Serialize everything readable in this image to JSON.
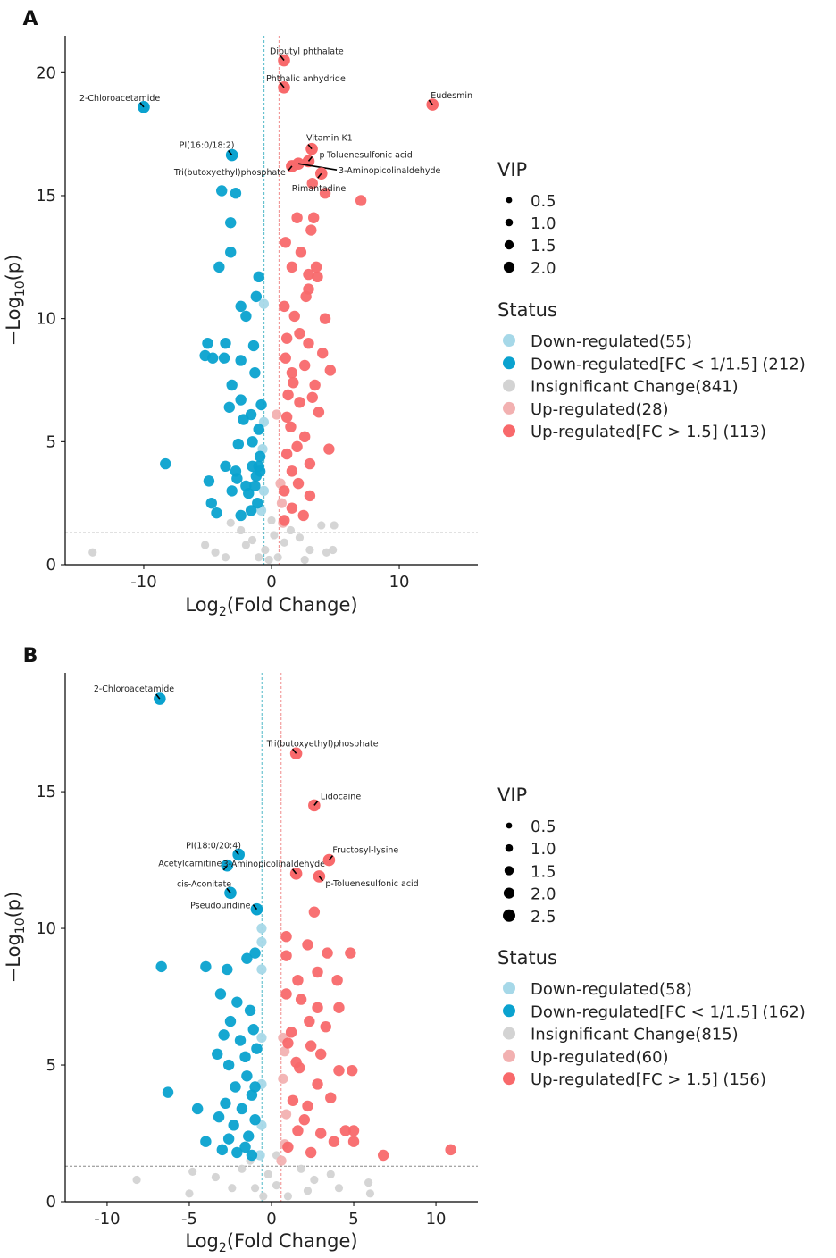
{
  "colors": {
    "down": "#a6d8e8",
    "down_fc": "#0aa2cf",
    "insig": "#d3d3d3",
    "up": "#f2b1b1",
    "up_fc": "#f8696b",
    "threshold_down": "#4fb8c8",
    "threshold_up": "#f08a8a",
    "threshold_p": "#888888"
  },
  "chart_data": [
    {
      "type": "scatter",
      "panel_label": "A",
      "xlabel": {
        "pre": "Log",
        "sub": "2",
        "post": "(Fold Change)"
      },
      "ylabel": {
        "pre": "−Log",
        "sub": "10",
        "post": "(p)"
      },
      "xlim": [
        -16.15,
        16.15
      ],
      "ylim": [
        0,
        21.5
      ],
      "xticks": [
        -10,
        0,
        10
      ],
      "yticks": [
        0,
        5,
        10,
        15,
        20
      ],
      "thresholds": {
        "log2fc": [
          -0.585,
          0.585
        ],
        "neg_log10_p": 1.3
      },
      "legend": {
        "vip_title": "VIP",
        "vip_sizes": [
          "0.5",
          "1.0",
          "1.5",
          "2.0"
        ],
        "status_title": "Status",
        "status": [
          {
            "key": "down",
            "label": "Down-regulated(55)"
          },
          {
            "key": "down_fc",
            "label": "Down-regulated[FC < 1/1.5] (212)"
          },
          {
            "key": "insig",
            "label": "Insignificant Change(841)"
          },
          {
            "key": "up",
            "label": "Up-regulated(28)"
          },
          {
            "key": "up_fc",
            "label": "Up-regulated[FC > 1.5] (113)"
          }
        ]
      },
      "labeled_points": [
        {
          "name": "Dibutyl phthalate",
          "x": 0.98,
          "y": 20.5,
          "status": "up_fc"
        },
        {
          "name": "Phthalic anhydride",
          "x": 0.98,
          "y": 19.4,
          "status": "up_fc"
        },
        {
          "name": "Eudesmin",
          "x": 12.6,
          "y": 18.7,
          "status": "up_fc"
        },
        {
          "name": "2-Chloroacetamide",
          "x": -10.0,
          "y": 18.6,
          "status": "down_fc"
        },
        {
          "name": "PI(16:0/18:2)",
          "x": -3.1,
          "y": 16.65,
          "status": "down_fc"
        },
        {
          "name": "Vitamin K1",
          "x": 3.15,
          "y": 16.9,
          "status": "up_fc"
        },
        {
          "name": "p-Toluenesulfonic acid",
          "x": 2.9,
          "y": 16.4,
          "status": "up_fc"
        },
        {
          "name": "Tri(butoxyethyl)phosphate",
          "x": 1.6,
          "y": 16.2,
          "status": "up_fc"
        },
        {
          "name": "3-Aminopicolinaldehyde",
          "x": 2.1,
          "y": 16.3,
          "status": "up_fc"
        },
        {
          "name": "Rimantadine",
          "x": 3.9,
          "y": 15.9,
          "status": "up_fc"
        }
      ],
      "points": {
        "down_fc": [
          [
            -3.9,
            15.2
          ],
          [
            -2.8,
            15.1
          ],
          [
            -3.2,
            13.9
          ],
          [
            -3.2,
            12.7
          ],
          [
            -4.1,
            12.1
          ],
          [
            -1.0,
            11.7
          ],
          [
            -1.2,
            10.9
          ],
          [
            -2.4,
            10.5
          ],
          [
            -2.0,
            10.1
          ],
          [
            -5.0,
            9.0
          ],
          [
            -5.2,
            8.5
          ],
          [
            -4.6,
            8.4
          ],
          [
            -3.7,
            8.4
          ],
          [
            -2.4,
            8.3
          ],
          [
            -1.4,
            8.9
          ],
          [
            -3.1,
            7.3
          ],
          [
            -2.4,
            6.7
          ],
          [
            -3.3,
            6.4
          ],
          [
            -1.6,
            6.1
          ],
          [
            -2.2,
            5.9
          ],
          [
            -1.5,
            5.0
          ],
          [
            -2.6,
            4.9
          ],
          [
            -8.3,
            4.1
          ],
          [
            -3.6,
            4.0
          ],
          [
            -2.8,
            3.8
          ],
          [
            -4.9,
            3.4
          ],
          [
            -3.1,
            3.0
          ],
          [
            -1.8,
            2.9
          ],
          [
            -4.7,
            2.5
          ],
          [
            -4.3,
            2.1
          ],
          [
            -2.4,
            2.0
          ],
          [
            -1.2,
            3.6
          ],
          [
            -0.9,
            4.4
          ],
          [
            -1.3,
            7.8
          ],
          [
            -0.8,
            6.5
          ],
          [
            -1.0,
            5.5
          ],
          [
            -1.5,
            4.0
          ],
          [
            -2.0,
            3.2
          ],
          [
            -1.1,
            2.5
          ],
          [
            -3.6,
            9.0
          ],
          [
            -1.0,
            4.0
          ],
          [
            -1.3,
            3.2
          ],
          [
            -0.9,
            3.8
          ],
          [
            -1.6,
            2.2
          ],
          [
            -2.7,
            3.5
          ]
        ],
        "down": [
          [
            -0.6,
            10.6
          ],
          [
            -0.6,
            5.8
          ],
          [
            -0.7,
            4.7
          ],
          [
            -0.6,
            3.0
          ],
          [
            -0.8,
            2.2
          ]
        ],
        "up_fc": [
          [
            2.0,
            14.1
          ],
          [
            3.3,
            14.1
          ],
          [
            1.1,
            13.1
          ],
          [
            3.1,
            13.6
          ],
          [
            2.3,
            12.7
          ],
          [
            1.6,
            12.1
          ],
          [
            3.5,
            12.1
          ],
          [
            2.9,
            11.8
          ],
          [
            3.6,
            11.7
          ],
          [
            2.9,
            11.2
          ],
          [
            2.7,
            10.9
          ],
          [
            1.8,
            10.1
          ],
          [
            4.2,
            10.0
          ],
          [
            1.2,
            9.2
          ],
          [
            2.2,
            9.4
          ],
          [
            2.9,
            9.0
          ],
          [
            4.0,
            8.6
          ],
          [
            1.1,
            8.4
          ],
          [
            2.6,
            8.1
          ],
          [
            4.6,
            7.9
          ],
          [
            1.7,
            7.4
          ],
          [
            3.4,
            7.3
          ],
          [
            1.3,
            6.9
          ],
          [
            2.2,
            6.6
          ],
          [
            3.7,
            6.2
          ],
          [
            1.5,
            5.6
          ],
          [
            2.6,
            5.2
          ],
          [
            4.5,
            4.7
          ],
          [
            1.2,
            4.5
          ],
          [
            3.0,
            4.1
          ],
          [
            1.6,
            3.8
          ],
          [
            2.1,
            3.3
          ],
          [
            1.0,
            3.0
          ],
          [
            3.0,
            2.8
          ],
          [
            1.6,
            2.3
          ],
          [
            2.5,
            2.0
          ],
          [
            1.0,
            1.8
          ],
          [
            7.0,
            14.8
          ],
          [
            4.2,
            15.1
          ],
          [
            3.2,
            15.5
          ],
          [
            1.6,
            7.8
          ],
          [
            2.0,
            4.8
          ],
          [
            1.2,
            6.0
          ],
          [
            3.2,
            6.8
          ],
          [
            1.0,
            10.5
          ]
        ],
        "up": [
          [
            0.4,
            6.1
          ],
          [
            0.7,
            3.3
          ],
          [
            0.8,
            2.5
          ],
          [
            0.9,
            1.7
          ]
        ],
        "insig": [
          [
            -14,
            0.5
          ],
          [
            -5.2,
            0.8
          ],
          [
            -4.4,
            0.5
          ],
          [
            -3.2,
            1.7
          ],
          [
            -2.4,
            1.4
          ],
          [
            -1.5,
            1.0
          ],
          [
            -0.5,
            0.6
          ],
          [
            0.2,
            1.2
          ],
          [
            0.5,
            0.3
          ],
          [
            1.0,
            0.9
          ],
          [
            1.5,
            1.4
          ],
          [
            2.2,
            1.1
          ],
          [
            3.0,
            0.6
          ],
          [
            3.9,
            1.6
          ],
          [
            4.9,
            1.6
          ],
          [
            4.8,
            0.6
          ],
          [
            -1.0,
            0.3
          ],
          [
            -2.0,
            0.8
          ],
          [
            0.0,
            1.8
          ],
          [
            -0.2,
            0.2
          ],
          [
            2.6,
            0.2
          ],
          [
            4.3,
            0.5
          ],
          [
            -3.6,
            0.3
          ]
        ]
      }
    },
    {
      "type": "scatter",
      "panel_label": "B",
      "xlabel": {
        "pre": "Log",
        "sub": "2",
        "post": "(Fold Change)"
      },
      "ylabel": {
        "pre": "−Log",
        "sub": "10",
        "post": "(p)"
      },
      "xlim": [
        -12.55,
        12.55
      ],
      "ylim": [
        0,
        19.35
      ],
      "xticks": [
        -10,
        -5,
        0,
        5,
        10
      ],
      "yticks": [
        0,
        5,
        10,
        15
      ],
      "thresholds": {
        "log2fc": [
          -0.585,
          0.585
        ],
        "neg_log10_p": 1.3
      },
      "legend": {
        "vip_title": "VIP",
        "vip_sizes": [
          "0.5",
          "1.0",
          "1.5",
          "2.0",
          "2.5"
        ],
        "status_title": "Status",
        "status": [
          {
            "key": "down",
            "label": "Down-regulated(58)"
          },
          {
            "key": "down_fc",
            "label": "Down-regulated[FC < 1/1.5] (162)"
          },
          {
            "key": "insig",
            "label": "Insignificant Change(815)"
          },
          {
            "key": "up",
            "label": "Up-regulated(60)"
          },
          {
            "key": "up_fc",
            "label": "Up-regulated[FC > 1.5] (156)"
          }
        ]
      },
      "labeled_points": [
        {
          "name": "2-Chloroacetamide",
          "x": -6.8,
          "y": 18.4,
          "status": "down_fc"
        },
        {
          "name": "Tri(butoxyethyl)phosphate",
          "x": 1.5,
          "y": 16.4,
          "status": "up_fc"
        },
        {
          "name": "Lidocaine",
          "x": 2.6,
          "y": 14.5,
          "status": "up_fc"
        },
        {
          "name": "PI(18:0/20:4)",
          "x": -2.0,
          "y": 12.7,
          "status": "down_fc"
        },
        {
          "name": "Acetylcarnitine",
          "x": -2.7,
          "y": 12.3,
          "status": "down_fc"
        },
        {
          "name": "3-Aminopicolinaldehyde",
          "x": 1.5,
          "y": 12.0,
          "status": "up_fc"
        },
        {
          "name": "Fructosyl-lysine",
          "x": 3.5,
          "y": 12.5,
          "status": "up_fc"
        },
        {
          "name": "p-Toluenesulfonic acid",
          "x": 2.9,
          "y": 11.9,
          "status": "up_fc"
        },
        {
          "name": "cis-Aconitate",
          "x": -2.5,
          "y": 11.3,
          "status": "down_fc"
        },
        {
          "name": "Pseudouridine",
          "x": -0.9,
          "y": 10.7,
          "status": "down_fc"
        }
      ],
      "points": {
        "down_fc": [
          [
            -6.7,
            8.6
          ],
          [
            -4.0,
            8.6
          ],
          [
            -2.7,
            8.5
          ],
          [
            -1.5,
            8.9
          ],
          [
            -1.0,
            9.1
          ],
          [
            -3.1,
            7.6
          ],
          [
            -2.1,
            7.3
          ],
          [
            -1.3,
            7.0
          ],
          [
            -2.5,
            6.6
          ],
          [
            -1.9,
            5.9
          ],
          [
            -3.3,
            5.4
          ],
          [
            -2.6,
            5.0
          ],
          [
            -1.5,
            4.6
          ],
          [
            -6.3,
            4.0
          ],
          [
            -2.2,
            4.2
          ],
          [
            -1.2,
            3.9
          ],
          [
            -4.5,
            3.4
          ],
          [
            -3.2,
            3.1
          ],
          [
            -2.3,
            2.8
          ],
          [
            -1.4,
            2.4
          ],
          [
            -4.0,
            2.2
          ],
          [
            -3.0,
            1.9
          ],
          [
            -2.1,
            1.8
          ],
          [
            -1.6,
            2.0
          ],
          [
            -1.0,
            3.0
          ],
          [
            -0.9,
            5.6
          ],
          [
            -1.1,
            6.3
          ],
          [
            -2.9,
            6.1
          ],
          [
            -1.6,
            5.3
          ],
          [
            -1.2,
            1.7
          ],
          [
            -2.6,
            2.3
          ],
          [
            -1.8,
            3.4
          ],
          [
            -1.0,
            4.2
          ],
          [
            -2.8,
            3.6
          ]
        ],
        "down": [
          [
            -0.6,
            10.0
          ],
          [
            -0.6,
            9.5
          ],
          [
            -0.6,
            8.5
          ],
          [
            -0.6,
            6.0
          ],
          [
            -0.6,
            4.3
          ],
          [
            -0.6,
            2.8
          ],
          [
            -0.7,
            1.7
          ]
        ],
        "up_fc": [
          [
            2.6,
            10.6
          ],
          [
            0.9,
            9.7
          ],
          [
            2.2,
            9.4
          ],
          [
            0.9,
            9.0
          ],
          [
            3.4,
            9.1
          ],
          [
            4.8,
            9.1
          ],
          [
            2.8,
            8.4
          ],
          [
            1.6,
            8.1
          ],
          [
            4.0,
            8.1
          ],
          [
            0.9,
            7.6
          ],
          [
            1.8,
            7.4
          ],
          [
            2.8,
            7.1
          ],
          [
            4.1,
            7.1
          ],
          [
            2.3,
            6.6
          ],
          [
            1.2,
            6.2
          ],
          [
            3.3,
            6.4
          ],
          [
            2.4,
            5.7
          ],
          [
            1.0,
            5.8
          ],
          [
            3.0,
            5.4
          ],
          [
            4.1,
            4.8
          ],
          [
            4.9,
            4.8
          ],
          [
            1.7,
            4.9
          ],
          [
            2.8,
            4.3
          ],
          [
            3.6,
            3.8
          ],
          [
            1.3,
            3.7
          ],
          [
            2.0,
            3.0
          ],
          [
            3.0,
            2.5
          ],
          [
            4.5,
            2.6
          ],
          [
            3.8,
            2.2
          ],
          [
            5.0,
            2.6
          ],
          [
            5.0,
            2.2
          ],
          [
            1.0,
            2.0
          ],
          [
            2.4,
            1.8
          ],
          [
            6.8,
            1.7
          ],
          [
            10.9,
            1.9
          ],
          [
            1.6,
            2.6
          ],
          [
            2.2,
            3.5
          ],
          [
            1.5,
            5.1
          ]
        ],
        "up": [
          [
            0.8,
            5.5
          ],
          [
            0.7,
            4.5
          ],
          [
            0.9,
            3.2
          ],
          [
            0.8,
            2.1
          ],
          [
            0.6,
            1.5
          ],
          [
            0.7,
            6.0
          ]
        ],
        "insig": [
          [
            -8.2,
            0.8
          ],
          [
            -4.8,
            1.1
          ],
          [
            -3.4,
            0.9
          ],
          [
            -2.4,
            0.5
          ],
          [
            -1.8,
            1.2
          ],
          [
            -1.0,
            0.5
          ],
          [
            -0.2,
            1.0
          ],
          [
            0.3,
            0.6
          ],
          [
            1.0,
            0.2
          ],
          [
            1.8,
            1.2
          ],
          [
            2.6,
            0.8
          ],
          [
            3.6,
            1.0
          ],
          [
            4.1,
            0.5
          ],
          [
            6.0,
            0.3
          ],
          [
            5.9,
            0.7
          ],
          [
            -1.3,
            1.5
          ],
          [
            0.3,
            1.7
          ],
          [
            -5.0,
            0.3
          ],
          [
            2.2,
            0.4
          ],
          [
            -0.5,
            0.2
          ]
        ]
      }
    }
  ]
}
